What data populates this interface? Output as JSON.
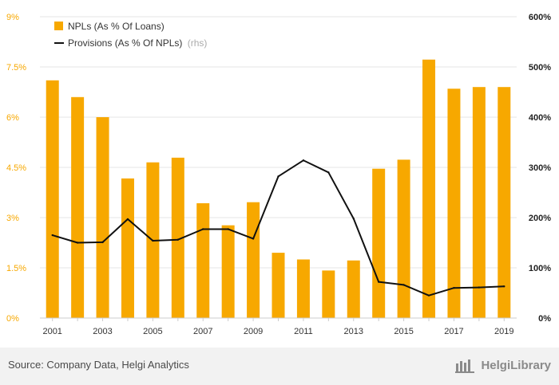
{
  "chart_data": {
    "type": "bar+line",
    "categories": [
      "2001",
      "2002",
      "2003",
      "2004",
      "2005",
      "2006",
      "2007",
      "2008",
      "2009",
      "2010",
      "2011",
      "2012",
      "2013",
      "2014",
      "2015",
      "2016",
      "2017",
      "2018",
      "2019"
    ],
    "x_tick_labels": [
      "2001",
      "2003",
      "2005",
      "2007",
      "2009",
      "2011",
      "2013",
      "2015",
      "2017",
      "2019"
    ],
    "series": [
      {
        "name": "NPLs (As % Of Loans)",
        "type": "bar",
        "axis": "left",
        "color": "#f7a800",
        "values": [
          7.1,
          6.6,
          6.0,
          4.17,
          4.65,
          4.79,
          3.43,
          2.77,
          3.46,
          1.95,
          1.75,
          1.42,
          1.72,
          4.46,
          4.73,
          7.72,
          6.85,
          6.9,
          6.9
        ]
      },
      {
        "name": "Provisions (As % Of NPLs)",
        "name_suffix": "(rhs)",
        "type": "line",
        "axis": "right",
        "color": "#111111",
        "values": [
          165,
          150,
          151,
          197,
          154,
          156,
          177,
          177,
          158,
          282,
          314,
          290,
          198,
          72,
          66,
          45,
          60,
          61,
          63
        ]
      }
    ],
    "y_left": {
      "ylim": [
        0,
        9
      ],
      "ticks": [
        "0%",
        "1.5%",
        "3%",
        "4.5%",
        "6%",
        "7.5%",
        "9%"
      ]
    },
    "y_right": {
      "ylim": [
        0,
        600
      ],
      "ticks": [
        "0%",
        "100%",
        "200%",
        "300%",
        "400%",
        "500%",
        "600%"
      ]
    },
    "legend_position": "top-left",
    "grid": "horizontal"
  },
  "footer": {
    "source": "Source: Company Data, Helgi Analytics",
    "brand": "HelgiLibrary"
  },
  "colors": {
    "bar": "#f7a800",
    "line": "#111111",
    "grid": "#e6e6e6",
    "left_axis_text": "#f7a800"
  }
}
